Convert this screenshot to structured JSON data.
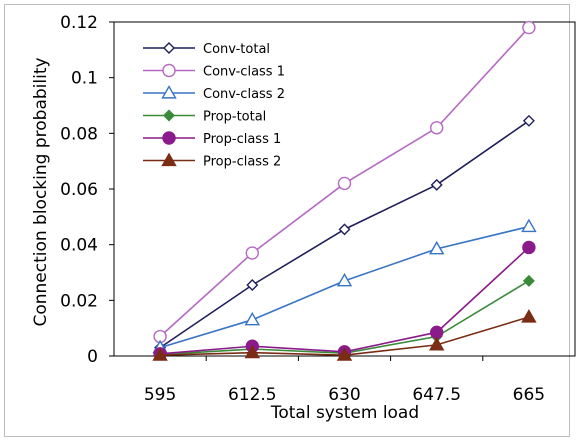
{
  "chart_data": {
    "type": "line",
    "xlabel": "Total system load",
    "ylabel": "Connection blocking probability",
    "x": [
      "595",
      "612.5",
      "630",
      "647.5",
      "665"
    ],
    "ylim": [
      0,
      0.12
    ],
    "yticks": [
      "0",
      "0.02",
      "0.04",
      "0.06",
      "0.08",
      "0.1",
      "0.12"
    ],
    "grid": false,
    "legend_position": "top-left",
    "series": [
      {
        "name": "Conv-total",
        "values": [
          0.003,
          0.0255,
          0.0455,
          0.0615,
          0.0845
        ],
        "color": "#1f1f5c",
        "marker": "diamond-open"
      },
      {
        "name": "Conv-class 1",
        "values": [
          0.007,
          0.037,
          0.062,
          0.082,
          0.118
        ],
        "color": "#b569c2",
        "marker": "circle-open"
      },
      {
        "name": "Conv-class 2",
        "values": [
          0.003,
          0.013,
          0.027,
          0.0385,
          0.0465
        ],
        "color": "#3874c6",
        "marker": "triangle-open"
      },
      {
        "name": "Prop-total",
        "values": [
          0.0005,
          0.0025,
          0.001,
          0.007,
          0.027
        ],
        "color": "#3a8a3a",
        "marker": "diamond-filled"
      },
      {
        "name": "Prop-class 1",
        "values": [
          0.0008,
          0.0035,
          0.0015,
          0.0085,
          0.039
        ],
        "color": "#8b1a8b",
        "marker": "circle-filled"
      },
      {
        "name": "Prop-class 2",
        "values": [
          0.0003,
          0.0012,
          0.0003,
          0.004,
          0.014
        ],
        "color": "#7a2c14",
        "marker": "triangle-filled"
      }
    ]
  }
}
